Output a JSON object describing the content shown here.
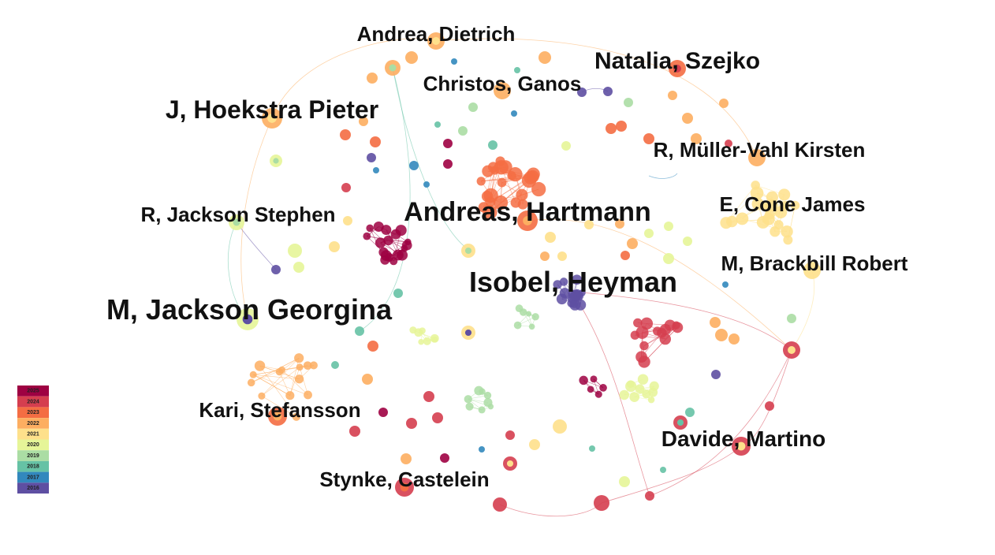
{
  "labels": [
    {
      "text": "Andrea, Dietrich"
    },
    {
      "text": "Natalia, Szejko"
    },
    {
      "text": "Christos, Ganos"
    },
    {
      "text": "J, Hoekstra Pieter"
    },
    {
      "text": "R, Müller-Vahl Kirsten"
    },
    {
      "text": "E, Cone James"
    },
    {
      "text": "R, Jackson Stephen"
    },
    {
      "text": "Andreas, Hartmann"
    },
    {
      "text": "M, Brackbill Robert"
    },
    {
      "text": "Isobel, Heyman"
    },
    {
      "text": "M, Jackson Georgina"
    },
    {
      "text": "Kari, Stefansson"
    },
    {
      "text": "Davide, Martino"
    },
    {
      "text": "Stynke, Castelein"
    }
  ],
  "legend": [
    {
      "label": "2025",
      "color": "#9e0142"
    },
    {
      "label": "2024",
      "color": "#d53e4f"
    },
    {
      "label": "2023",
      "color": "#f46d43"
    },
    {
      "label": "2022",
      "color": "#fdae61"
    },
    {
      "label": "2021",
      "color": "#fee08b"
    },
    {
      "label": "2020",
      "color": "#e6f598"
    },
    {
      "label": "2019",
      "color": "#abdda4"
    },
    {
      "label": "2018",
      "color": "#66c2a5"
    },
    {
      "label": "2017",
      "color": "#3288bd"
    },
    {
      "label": "2016",
      "color": "#5e4fa2"
    }
  ]
}
